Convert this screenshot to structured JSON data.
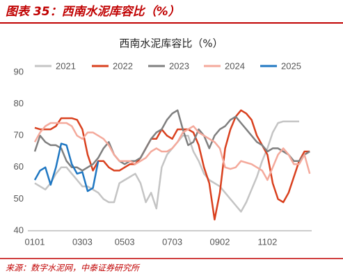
{
  "header": {
    "title": "图表 35：西南水泥库容比（%）"
  },
  "chart_data": {
    "type": "line",
    "title": "西南水泥库容比（%）",
    "categories": [
      "0101",
      null,
      null,
      null,
      null,
      null,
      null,
      null,
      null,
      "0303",
      null,
      null,
      null,
      null,
      null,
      null,
      null,
      "0503",
      null,
      null,
      null,
      null,
      null,
      null,
      null,
      null,
      "0703",
      null,
      null,
      null,
      null,
      null,
      null,
      null,
      null,
      "0902",
      null,
      null,
      null,
      null,
      null,
      null,
      null,
      null,
      "1102",
      null,
      null,
      null,
      null,
      null,
      null,
      null,
      null
    ],
    "series": [
      {
        "name": "2021",
        "color": "#c4c4c4",
        "values": [
          55,
          54,
          53,
          55,
          58,
          60,
          60,
          58,
          56,
          54,
          54,
          53,
          52,
          50,
          49,
          49,
          55,
          56,
          57,
          58,
          55,
          49,
          52,
          47,
          60,
          64,
          66,
          68,
          70,
          70,
          65,
          62,
          58,
          56,
          55,
          54,
          52,
          50,
          48,
          46,
          49,
          53,
          57,
          62,
          66,
          71,
          74,
          74.5,
          74.5,
          74.5,
          74.5,
          null,
          null
        ]
      },
      {
        "name": "2022",
        "color": "#d9401e",
        "values": [
          72.5,
          72,
          72,
          72,
          73,
          75.5,
          75.5,
          75.5,
          75,
          72,
          64,
          59,
          62,
          62,
          60,
          59,
          59,
          60,
          61,
          61,
          63,
          66,
          69,
          69,
          72,
          70,
          69,
          72,
          72,
          72,
          71,
          67,
          60,
          55,
          43.5,
          52,
          66,
          72,
          76,
          78,
          77,
          75,
          70,
          67,
          64,
          55,
          50,
          49,
          52,
          57,
          62,
          65,
          65
        ]
      },
      {
        "name": "2023",
        "color": "#7f7f7f",
        "values": [
          65,
          70,
          68,
          67,
          67,
          66,
          62,
          60,
          60,
          59,
          60,
          61,
          63,
          66,
          68,
          64,
          62,
          61,
          62,
          62,
          63,
          66,
          69,
          71,
          72,
          75,
          77,
          78,
          72,
          67,
          68,
          72,
          70,
          66,
          70,
          72,
          73,
          75,
          76,
          74,
          72,
          70,
          68,
          67,
          65,
          66,
          66,
          65,
          64,
          62,
          62,
          64,
          65
        ]
      },
      {
        "name": "2024",
        "color": "#f4a99b",
        "values": [
          68,
          71,
          73,
          74,
          74,
          74,
          74,
          73,
          70,
          69,
          71,
          71,
          70,
          69,
          67,
          64,
          62,
          62,
          62,
          61,
          62,
          63,
          65,
          66,
          65,
          65,
          66,
          68,
          71,
          72,
          73,
          71,
          70,
          69,
          68,
          66,
          60,
          59.5,
          60,
          62,
          61.5,
          61,
          60,
          59,
          56,
          60,
          64,
          66,
          64,
          61,
          61,
          64,
          58
        ]
      },
      {
        "name": "2025",
        "color": "#1f77c2",
        "values": [
          56,
          59,
          60,
          54.5,
          60,
          67.5,
          67,
          61,
          58,
          58.5,
          52.5,
          53.5,
          62,
          null,
          null,
          null,
          null,
          null,
          null,
          null,
          null,
          null,
          null,
          null,
          null,
          null,
          null,
          null,
          null,
          null,
          null,
          null,
          null,
          null,
          null,
          null,
          null,
          null,
          null,
          null,
          null,
          null,
          null,
          null,
          null,
          null,
          null,
          null,
          null,
          null,
          null,
          null,
          null
        ]
      }
    ],
    "ylim": [
      40,
      90
    ],
    "yticks": [
      40,
      50,
      60,
      70,
      80,
      90
    ],
    "grid": false
  },
  "footer": {
    "source": "来源：数字水泥网，中泰证券研究所"
  }
}
